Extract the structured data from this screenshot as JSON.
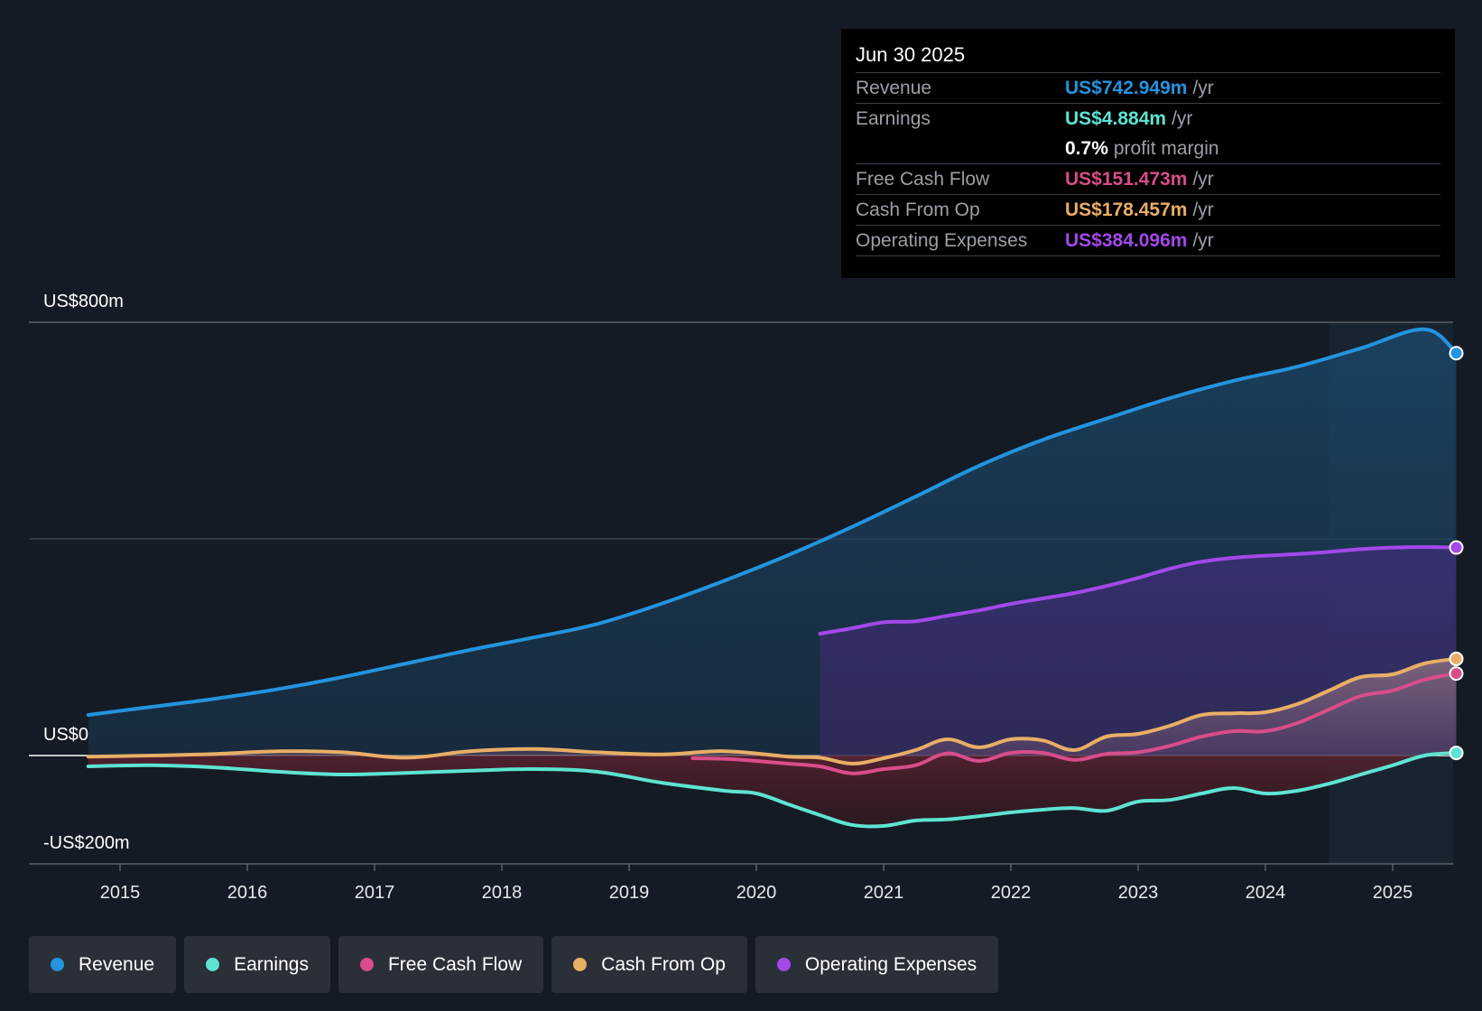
{
  "tooltip": {
    "date": "Jun 30 2025",
    "rows": [
      {
        "label": "Revenue",
        "value": "US$742.949m",
        "unit": "/yr",
        "color": "#2394df"
      },
      {
        "label": "Earnings",
        "value": "US$4.884m",
        "unit": "/yr",
        "color": "#5ee3d2"
      },
      {
        "label": "",
        "value": "0.7%",
        "unit": "profit margin",
        "color": "#ffffff"
      },
      {
        "label": "Free Cash Flow",
        "value": "US$151.473m",
        "unit": "/yr",
        "color": "#d84d8a"
      },
      {
        "label": "Cash From Op",
        "value": "US$178.457m",
        "unit": "/yr",
        "color": "#e9ae66"
      },
      {
        "label": "Operating Expenses",
        "value": "US$384.096m",
        "unit": "/yr",
        "color": "#a349ea"
      }
    ]
  },
  "legend": [
    {
      "label": "Revenue",
      "color": "#2394df"
    },
    {
      "label": "Earnings",
      "color": "#5ee3d2"
    },
    {
      "label": "Free Cash Flow",
      "color": "#d84d8a"
    },
    {
      "label": "Cash From Op",
      "color": "#e9ae66"
    },
    {
      "label": "Operating Expenses",
      "color": "#a349ea"
    }
  ],
  "chart_data": {
    "type": "line",
    "title": "",
    "ylim": [
      -200,
      800
    ],
    "y_tick_labels": [
      "US$800m",
      "US$0",
      "-US$200m"
    ],
    "x_ticks": [
      2015,
      2016,
      2017,
      2018,
      2019,
      2020,
      2021,
      2022,
      2023,
      2024,
      2025
    ],
    "xlim": [
      2014.3,
      2025.5
    ],
    "forecast_start": 2024.5,
    "series": [
      {
        "name": "Revenue",
        "color": "#2394df",
        "x": [
          2014.75,
          2015.25,
          2015.75,
          2016.25,
          2016.75,
          2017.25,
          2017.75,
          2018.25,
          2018.75,
          2019.25,
          2019.75,
          2020.25,
          2020.75,
          2021.25,
          2021.75,
          2022.25,
          2022.75,
          2023.25,
          2023.75,
          2024.25,
          2024.75,
          2025.25,
          2025.5
        ],
        "y": [
          75,
          90,
          105,
          123,
          145,
          170,
          195,
          218,
          243,
          280,
          323,
          370,
          422,
          478,
          535,
          583,
          622,
          660,
          692,
          718,
          752,
          787,
          742.949
        ]
      },
      {
        "name": "Operating Expenses",
        "color": "#a349ea",
        "x": [
          2020.5,
          2020.75,
          2021,
          2021.25,
          2021.5,
          2021.75,
          2022,
          2022.25,
          2022.5,
          2022.75,
          2023,
          2023.25,
          2023.5,
          2023.75,
          2024,
          2024.25,
          2024.5,
          2024.75,
          2025,
          2025.25,
          2025.5
        ],
        "y": [
          225,
          235,
          246,
          248,
          258,
          268,
          280,
          290,
          300,
          313,
          328,
          345,
          358,
          365,
          369,
          372,
          376,
          381,
          384,
          385,
          384.096
        ]
      },
      {
        "name": "Cash From Op",
        "color": "#e9ae66",
        "x": [
          2014.75,
          2015.25,
          2015.75,
          2016.25,
          2016.75,
          2017.25,
          2017.75,
          2018.25,
          2018.75,
          2019.25,
          2019.75,
          2020.25,
          2020.5,
          2020.75,
          2021,
          2021.25,
          2021.5,
          2021.75,
          2022,
          2022.25,
          2022.5,
          2022.75,
          2023,
          2023.25,
          2023.5,
          2023.75,
          2024,
          2024.25,
          2024.5,
          2024.75,
          2025,
          2025.25,
          2025.5
        ],
        "y": [
          -2,
          0,
          3,
          8,
          6,
          -4,
          8,
          12,
          6,
          2,
          8,
          -2,
          -4,
          -15,
          -5,
          10,
          30,
          15,
          30,
          28,
          10,
          35,
          40,
          55,
          75,
          78,
          80,
          95,
          120,
          145,
          150,
          170,
          178.457
        ]
      },
      {
        "name": "Free Cash Flow",
        "color": "#d84d8a",
        "x": [
          2019.5,
          2019.75,
          2020,
          2020.25,
          2020.5,
          2020.75,
          2021,
          2021.25,
          2021.5,
          2021.75,
          2022,
          2022.25,
          2022.5,
          2022.75,
          2023,
          2023.25,
          2023.5,
          2023.75,
          2024,
          2024.25,
          2024.5,
          2024.75,
          2025,
          2025.25,
          2025.5
        ],
        "y": [
          -5,
          -6,
          -10,
          -15,
          -20,
          -33,
          -25,
          -18,
          4,
          -10,
          5,
          5,
          -8,
          3,
          6,
          18,
          35,
          45,
          45,
          60,
          85,
          110,
          120,
          140,
          151.473
        ]
      },
      {
        "name": "Earnings",
        "color": "#5ee3d2",
        "x": [
          2014.75,
          2015.25,
          2015.75,
          2016.25,
          2016.75,
          2017.25,
          2017.75,
          2018.25,
          2018.75,
          2019.25,
          2019.75,
          2020,
          2020.25,
          2020.5,
          2020.75,
          2021,
          2021.25,
          2021.5,
          2021.75,
          2022,
          2022.25,
          2022.5,
          2022.75,
          2023,
          2023.25,
          2023.5,
          2023.75,
          2024,
          2024.25,
          2024.5,
          2024.75,
          2025,
          2025.25,
          2025.5
        ],
        "y": [
          -20,
          -18,
          -22,
          -30,
          -35,
          -32,
          -28,
          -25,
          -30,
          -50,
          -65,
          -70,
          -90,
          -110,
          -128,
          -130,
          -120,
          -118,
          -112,
          -105,
          -100,
          -97,
          -102,
          -85,
          -82,
          -70,
          -60,
          -70,
          -65,
          -52,
          -35,
          -18,
          0,
          4.884
        ]
      }
    ]
  }
}
